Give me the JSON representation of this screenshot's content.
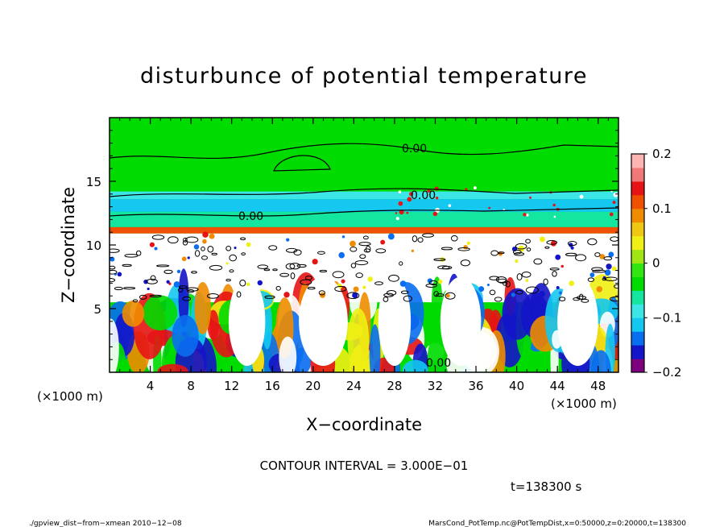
{
  "chart_data": {
    "type": "heatmap",
    "title": "disturbunce of potential temperature",
    "xlabel": "X−coordinate",
    "ylabel": "Z−coordinate",
    "x_unit_label": "(×1000 m)",
    "y_unit_label": "(×1000 m)",
    "xlim": [
      0,
      50
    ],
    "ylim": [
      0,
      20
    ],
    "x_ticks": [
      4,
      8,
      12,
      16,
      20,
      24,
      28,
      32,
      36,
      40,
      44,
      48
    ],
    "x_tick_labels": [
      "4",
      "8",
      "12",
      "16",
      "20",
      "24",
      "28",
      "32",
      "36",
      "40",
      "44",
      "48"
    ],
    "y_ticks": [
      5,
      10,
      15
    ],
    "y_tick_labels": [
      "5",
      "10",
      "15"
    ],
    "colorbar": {
      "range": [
        -0.2,
        0.2
      ],
      "ticks": [
        0.2,
        0.1,
        0,
        -0.1,
        -0.2
      ],
      "tick_labels": [
        "0.2",
        "0.1",
        "0",
        "−0.1",
        "−0.2"
      ],
      "colors": [
        "#7f007f",
        "#1414c8",
        "#0a6ef0",
        "#14c8f0",
        "#3ce6e6",
        "#14e6a0",
        "#00dc00",
        "#32e614",
        "#a0e614",
        "#f0f014",
        "#f0c814",
        "#f08c00",
        "#f05000",
        "#e61414",
        "#f07878",
        "#ffb4b4"
      ]
    },
    "contour_labels": [
      "0.00",
      "0.00",
      "0.00",
      "0.00"
    ],
    "contour_interval_text": "CONTOUR INTERVAL = 3.000E−01",
    "time_text": "t=138300 s"
  },
  "footer": {
    "left": "./gpview_dist−from−xmean  2010−12−08",
    "right": "MarsCond_PotTemp.nc@PotTempDist,x=0:50000,z=0:20000,t=138300"
  }
}
